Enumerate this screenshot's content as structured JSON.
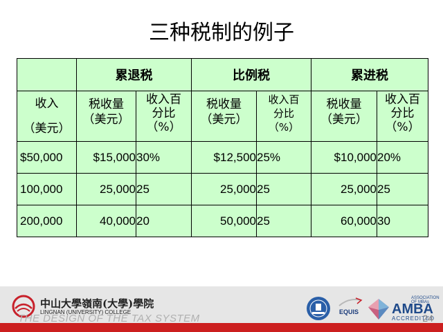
{
  "title": "三种税制的例子",
  "table": {
    "groups": [
      "累退税",
      "比例税",
      "累进税"
    ],
    "income_header": [
      "收入",
      "（美元）"
    ],
    "sub_headers": [
      [
        "税收量",
        "（美元）"
      ],
      [
        "收入百",
        "分比",
        "（%）"
      ],
      [
        "税收量",
        "（美元）"
      ],
      [
        "收入百",
        "分比",
        "（%）"
      ],
      [
        "税收量",
        "（美元）"
      ],
      [
        "收入百",
        "分比",
        "（%）"
      ]
    ],
    "rows": [
      [
        "$50,000",
        "$15,000",
        "30%",
        "$12,500",
        "25%",
        "$10,000",
        "20%"
      ],
      [
        "100,000",
        "25,000",
        "25",
        "25,000",
        "25",
        "25,000",
        "25"
      ],
      [
        "200,000",
        "40,000",
        "20",
        "50,000",
        "25",
        "60,000",
        "30"
      ]
    ]
  },
  "footer": {
    "text": "THE DESIGN OF THE TAX SYSTEM",
    "page_number": "24",
    "school_cn": "中山大學嶺南(大學)學院",
    "school_en": "LINGNAN (UNIVERSITY) COLLEGE",
    "badge_equis": "EQUIS",
    "badge_amba": "AMBA",
    "badge_amba_small": "ASSOCIATION OF MBAs",
    "badge_amba_acc": "ACCREDITED"
  },
  "colors": {
    "table_bg": "#ccffcc",
    "footer_band": "#e6e6e6",
    "accent_red": "#cc1f1f"
  }
}
